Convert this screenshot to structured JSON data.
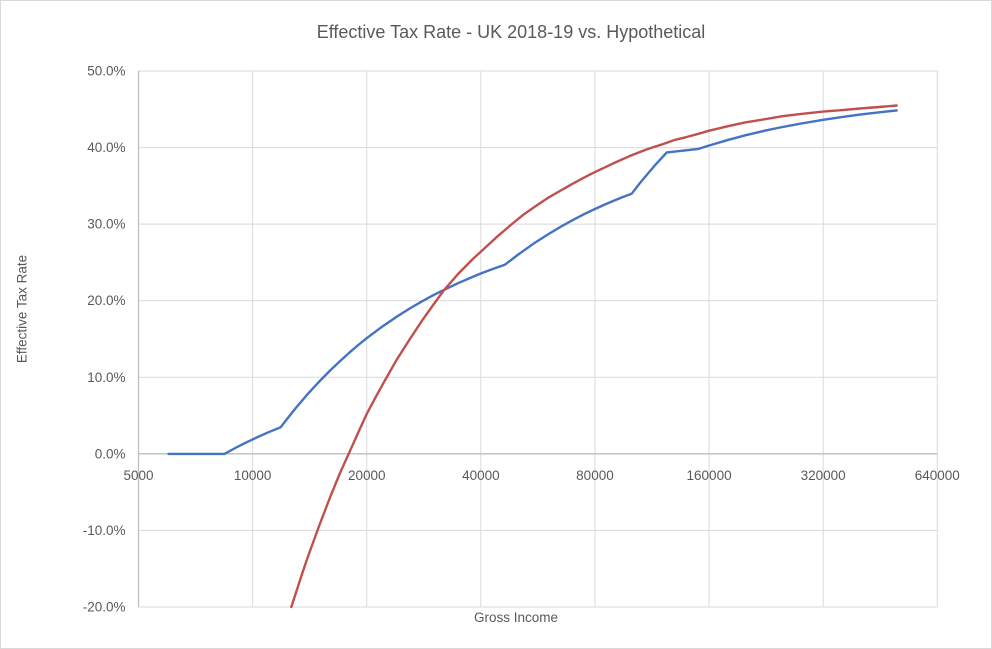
{
  "chart_data": {
    "type": "line",
    "title": "Effective Tax Rate - UK 2018-19 vs. Hypothetical",
    "xlabel": "Gross Income",
    "ylabel": "Effective Tax Rate",
    "x_scale": "log2",
    "xlim": [
      5000,
      640000
    ],
    "ylim": [
      -20,
      50
    ],
    "grid": true,
    "legend_position": "none",
    "x_ticks": {
      "values": [
        5000,
        10000,
        20000,
        40000,
        80000,
        160000,
        320000,
        640000
      ],
      "labels": [
        "5000",
        "10000",
        "20000",
        "40000",
        "80000",
        "160000",
        "320000",
        "640000"
      ]
    },
    "y_ticks": {
      "values": [
        50,
        40,
        30,
        20,
        10,
        0,
        -10,
        -20
      ],
      "labels": [
        "50.0%",
        "40.0%",
        "30.0%",
        "20.0%",
        "10.0%",
        "0.0%",
        "-10.0%",
        "-20.0%"
      ]
    },
    "series": [
      {
        "name": "UK 2018-19",
        "color": "#4472C4",
        "points": [
          [
            6000,
            0
          ],
          [
            7000,
            0
          ],
          [
            8000,
            0
          ],
          [
            8424,
            0
          ],
          [
            9000,
            0.77
          ],
          [
            9500,
            1.36
          ],
          [
            10000,
            1.89
          ],
          [
            10500,
            2.37
          ],
          [
            11000,
            2.81
          ],
          [
            11850,
            3.47
          ],
          [
            12500,
            4.95
          ],
          [
            13000,
            5.99
          ],
          [
            14000,
            7.85
          ],
          [
            15000,
            9.46
          ],
          [
            16000,
            10.87
          ],
          [
            17000,
            12.11
          ],
          [
            18000,
            13.22
          ],
          [
            19000,
            14.21
          ],
          [
            20000,
            15.1
          ],
          [
            22000,
            16.63
          ],
          [
            24000,
            17.91
          ],
          [
            26000,
            19.0
          ],
          [
            28000,
            19.93
          ],
          [
            30000,
            20.73
          ],
          [
            32000,
            21.43
          ],
          [
            35000,
            22.34
          ],
          [
            38000,
            23.1
          ],
          [
            40000,
            23.55
          ],
          [
            43000,
            24.14
          ],
          [
            46350,
            24.71
          ],
          [
            50000,
            25.97
          ],
          [
            55000,
            27.43
          ],
          [
            60000,
            28.64
          ],
          [
            65000,
            29.67
          ],
          [
            70000,
            30.55
          ],
          [
            75000,
            31.31
          ],
          [
            80000,
            31.98
          ],
          [
            85000,
            32.57
          ],
          [
            90000,
            33.09
          ],
          [
            95000,
            33.56
          ],
          [
            100000,
            33.98
          ],
          [
            105000,
            35.32
          ],
          [
            110000,
            36.53
          ],
          [
            115000,
            37.64
          ],
          [
            120000,
            38.65
          ],
          [
            123700,
            39.35
          ],
          [
            130000,
            39.48
          ],
          [
            140000,
            39.66
          ],
          [
            150000,
            39.82
          ],
          [
            160000,
            40.27
          ],
          [
            180000,
            41.01
          ],
          [
            200000,
            41.61
          ],
          [
            225000,
            42.21
          ],
          [
            250000,
            42.69
          ],
          [
            280000,
            43.15
          ],
          [
            320000,
            43.63
          ],
          [
            360000,
            44.01
          ],
          [
            400000,
            44.31
          ],
          [
            450000,
            44.61
          ],
          [
            500000,
            44.85
          ]
        ]
      },
      {
        "name": "Hypothetical",
        "color": "#C0504D",
        "points": [
          [
            12650,
            -20.0
          ],
          [
            13000,
            -18.2
          ],
          [
            13500,
            -15.7
          ],
          [
            14000,
            -13.4
          ],
          [
            15000,
            -9.3
          ],
          [
            16000,
            -5.7
          ],
          [
            17000,
            -2.5
          ],
          [
            18000,
            0.2
          ],
          [
            19000,
            2.8
          ],
          [
            20000,
            5.2
          ],
          [
            21000,
            7.2
          ],
          [
            22000,
            9.0
          ],
          [
            24000,
            12.3
          ],
          [
            26000,
            15.0
          ],
          [
            28000,
            17.4
          ],
          [
            30000,
            19.5
          ],
          [
            32000,
            21.4
          ],
          [
            35000,
            23.6
          ],
          [
            38000,
            25.4
          ],
          [
            40000,
            26.4
          ],
          [
            44000,
            28.3
          ],
          [
            48000,
            29.9
          ],
          [
            52000,
            31.3
          ],
          [
            56000,
            32.4
          ],
          [
            60000,
            33.4
          ],
          [
            65000,
            34.4
          ],
          [
            70000,
            35.3
          ],
          [
            75000,
            36.1
          ],
          [
            80000,
            36.8
          ],
          [
            90000,
            38.0
          ],
          [
            100000,
            39.0
          ],
          [
            110000,
            39.8
          ],
          [
            120000,
            40.4
          ],
          [
            130000,
            41.0
          ],
          [
            140000,
            41.4
          ],
          [
            150000,
            41.8
          ],
          [
            160000,
            42.2
          ],
          [
            180000,
            42.8
          ],
          [
            200000,
            43.3
          ],
          [
            225000,
            43.7
          ],
          [
            250000,
            44.1
          ],
          [
            280000,
            44.4
          ],
          [
            320000,
            44.7
          ],
          [
            360000,
            44.9
          ],
          [
            400000,
            45.1
          ],
          [
            450000,
            45.3
          ],
          [
            500000,
            45.5
          ]
        ]
      }
    ],
    "colors": {
      "gridline": "#D9D9D9",
      "axis_line": "#BFBFBF",
      "text": "#595959",
      "background": "#FFFFFF",
      "border": "#D9D9D9"
    }
  }
}
